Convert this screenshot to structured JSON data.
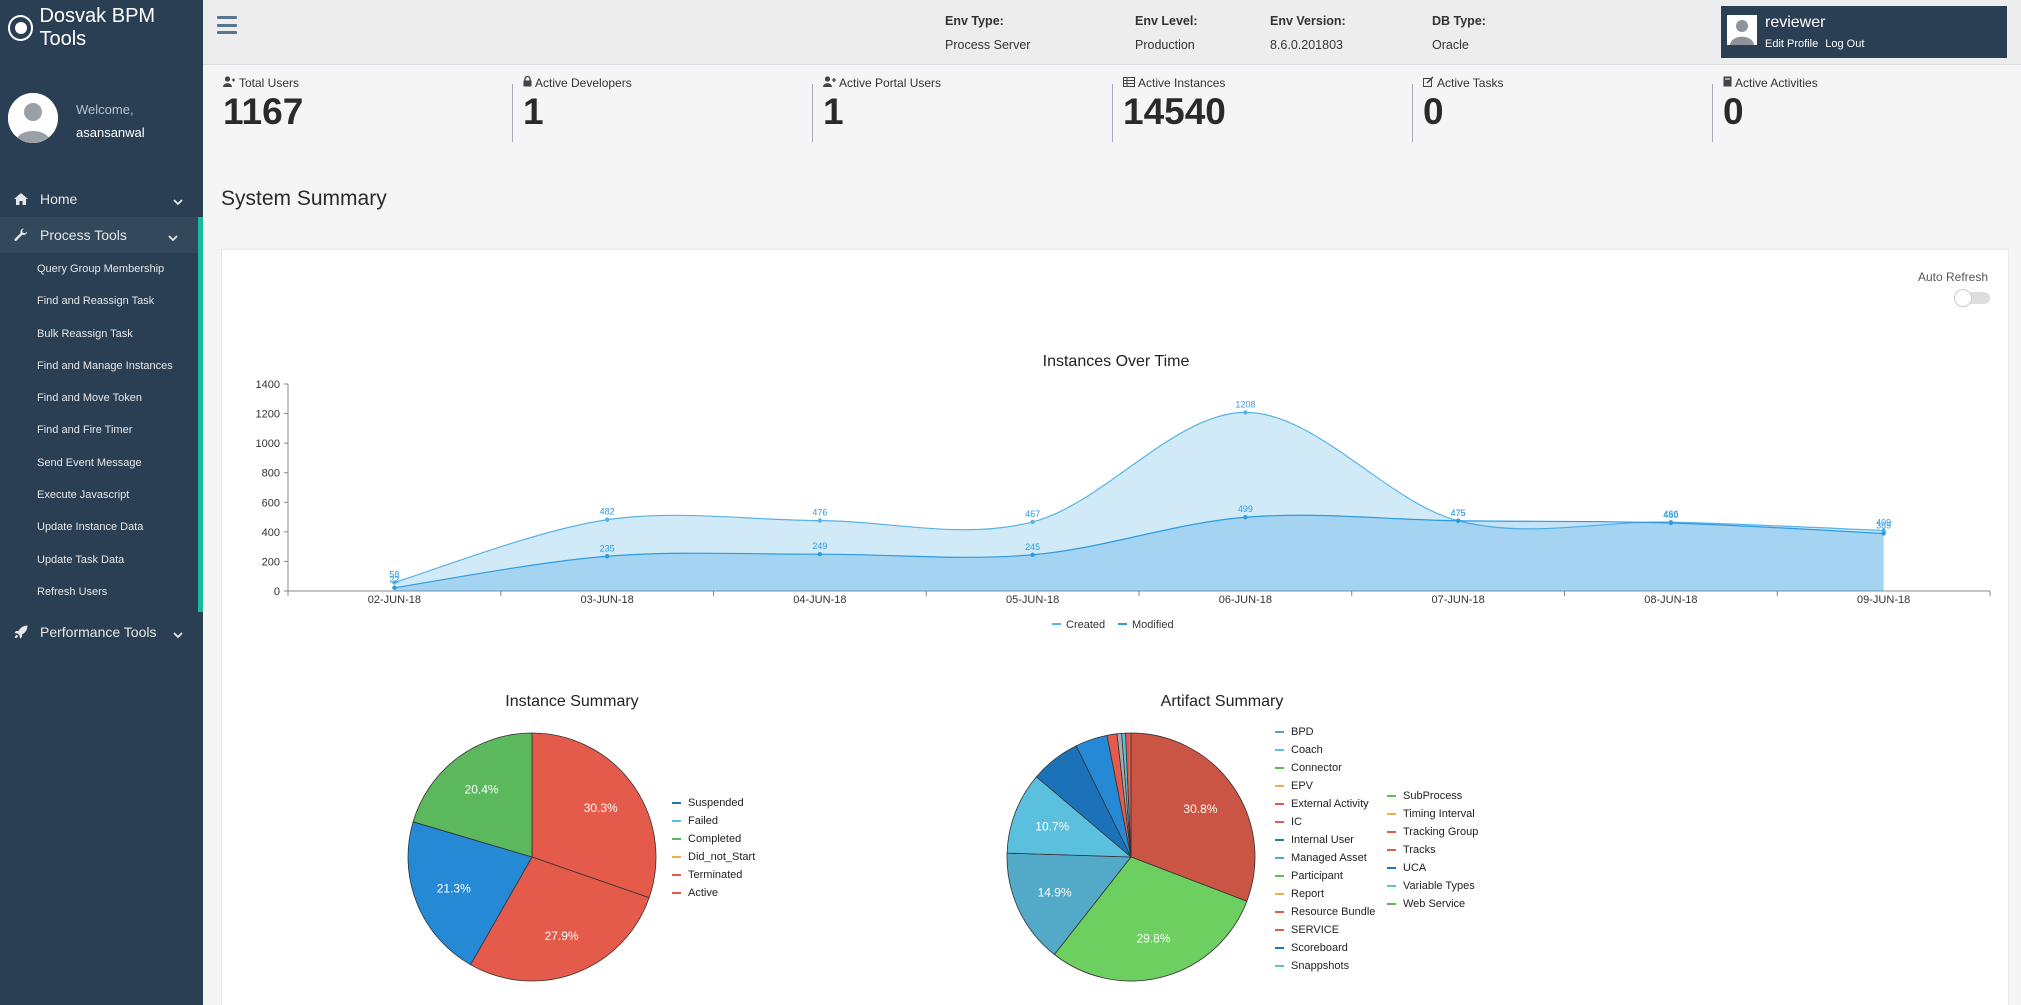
{
  "app": {
    "title": "Dosvak BPM Tools"
  },
  "profile": {
    "welcome": "Welcome,",
    "username": "asansanwal"
  },
  "nav": {
    "home": "Home",
    "process_tools": "Process Tools",
    "performance_tools": "Performance Tools",
    "process_items": [
      "Query Group Membership",
      "Find and Reassign Task",
      "Bulk Reassign Task",
      "Find and Manage Instances",
      "Find and Move Token",
      "Find and Fire Timer",
      "Send Event Message",
      "Execute Javascript",
      "Update Instance Data",
      "Update Task Data",
      "Refresh Users"
    ]
  },
  "env": {
    "type_label": "Env Type:",
    "type_value": "Process Server",
    "level_label": "Env Level:",
    "level_value": "Production",
    "version_label": "Env Version:",
    "version_value": "8.6.0.201803",
    "db_label": "DB Type:",
    "db_value": "Oracle"
  },
  "user": {
    "name": "reviewer",
    "edit_profile": "Edit Profile",
    "logout": "Log Out"
  },
  "stats": [
    {
      "label": "Total Users",
      "value": "1167",
      "icon": "user-icon"
    },
    {
      "label": "Active Developers",
      "value": "1",
      "icon": "lock-icon"
    },
    {
      "label": "Active Portal Users",
      "value": "1",
      "icon": "user-plus-icon"
    },
    {
      "label": "Active Instances",
      "value": "14540",
      "icon": "table-icon"
    },
    {
      "label": "Active Tasks",
      "value": "0",
      "icon": "edit-icon"
    },
    {
      "label": "Active Activities",
      "value": "0",
      "icon": "book-icon"
    }
  ],
  "page": {
    "title": "System Summary",
    "auto_refresh": "Auto Refresh",
    "auto_refresh_on": false
  },
  "chart_data": [
    {
      "type": "area",
      "title": "Instances Over Time",
      "categories": [
        "02-JUN-18",
        "03-JUN-18",
        "04-JUN-18",
        "05-JUN-18",
        "06-JUN-18",
        "07-JUN-18",
        "08-JUN-18",
        "09-JUN-18"
      ],
      "ylim": [
        0,
        1400
      ],
      "yticks": [
        0,
        200,
        400,
        600,
        800,
        1000,
        1200,
        1400
      ],
      "series": [
        {
          "name": "Created",
          "values": [
            58,
            482,
            476,
            467,
            1208,
            475,
            466,
            409
          ],
          "color": "#59b3e5"
        },
        {
          "name": "Modified",
          "values": [
            22,
            235,
            249,
            245,
            499,
            475,
            460,
            389
          ],
          "color": "#2e9be0"
        }
      ],
      "data_labels": [
        "58",
        "22",
        "482",
        "235",
        "476",
        "249",
        "467",
        "245",
        "1208",
        "499",
        "475",
        "475",
        "466",
        "460",
        "409",
        "389"
      ]
    },
    {
      "type": "pie",
      "title": "Instance Summary",
      "slices": [
        {
          "label": "Active",
          "value": 30.3,
          "color": "#e45b4b",
          "text": "30.3%"
        },
        {
          "label": "Terminated",
          "value": 27.9,
          "color": "#e45b4b",
          "text": "27.9%"
        },
        {
          "label": "Failed",
          "value": 21.3,
          "color": "#2589d6",
          "text": "21.3%"
        },
        {
          "label": "Completed",
          "value": 20.4,
          "color": "#5cb85c",
          "text": "20.4%"
        }
      ],
      "legend": [
        {
          "label": "Suspended",
          "color": "#1f77b4"
        },
        {
          "label": "Failed",
          "color": "#5bc0de"
        },
        {
          "label": "Completed",
          "color": "#5cb85c"
        },
        {
          "label": "Did_not_Start",
          "color": "#f0ad4e"
        },
        {
          "label": "Terminated",
          "color": "#e45b4b"
        },
        {
          "label": "Active",
          "color": "#e45b4b"
        }
      ]
    },
    {
      "type": "pie",
      "title": "Artifact Summary",
      "slices": [
        {
          "label": "BPD",
          "value": 30.8,
          "color": "#cb5545",
          "text": "30.8%"
        },
        {
          "label": "Coach",
          "value": 29.8,
          "color": "#6ccf5f",
          "text": "29.8%"
        },
        {
          "label": "Connector",
          "value": 14.9,
          "color": "#52a9c8",
          "text": "14.9%"
        },
        {
          "label": "EPV",
          "value": 10.7,
          "color": "#5bc0de",
          "text": "10.7%"
        },
        {
          "label": "External Activity",
          "value": 6.5,
          "color": "#1b72b8",
          "text": ""
        },
        {
          "label": "IC",
          "value": 4.2,
          "color": "#2589d6",
          "text": ""
        },
        {
          "label": "Internal User",
          "value": 1.3,
          "color": "#e45b4b",
          "text": ""
        },
        {
          "label": "Managed Asset",
          "value": 0.6,
          "color": "#aaa",
          "text": ""
        },
        {
          "label": "Participant",
          "value": 0.5,
          "color": "#5bc0de",
          "text": ""
        },
        {
          "label": "Report",
          "value": 0.7,
          "color": "#e45b4b",
          "text": ""
        }
      ],
      "legend": [
        {
          "label": "BPD",
          "color": "#5a9bd4"
        },
        {
          "label": "Coach",
          "color": "#5bc0de"
        },
        {
          "label": "Connector",
          "color": "#5cb85c"
        },
        {
          "label": "EPV",
          "color": "#f0ad4e"
        },
        {
          "label": "External Activity",
          "color": "#e45b4b"
        },
        {
          "label": "IC",
          "color": "#e45b4b"
        },
        {
          "label": "Internal User",
          "color": "#1f77b4"
        },
        {
          "label": "Managed Asset",
          "color": "#52a9c8"
        },
        {
          "label": "Participant",
          "color": "#5cb85c"
        },
        {
          "label": "Report",
          "color": "#f0ad4e"
        },
        {
          "label": "Resource Bundle",
          "color": "#e45b4b"
        },
        {
          "label": "SERVICE",
          "color": "#e45b4b"
        },
        {
          "label": "Scoreboard",
          "color": "#1f77b4"
        },
        {
          "label": "Snappshots",
          "color": "#5bc0de"
        },
        {
          "label": "SubProcess",
          "color": "#5cb85c"
        },
        {
          "label": "Timing Interval",
          "color": "#f0ad4e"
        },
        {
          "label": "Tracking Group",
          "color": "#e45b4b"
        },
        {
          "label": "Tracks",
          "color": "#e45b4b"
        },
        {
          "label": "UCA",
          "color": "#1f77b4"
        },
        {
          "label": "Variable Types",
          "color": "#5bc0de"
        },
        {
          "label": "Web Service",
          "color": "#5cb85c"
        }
      ]
    }
  ]
}
